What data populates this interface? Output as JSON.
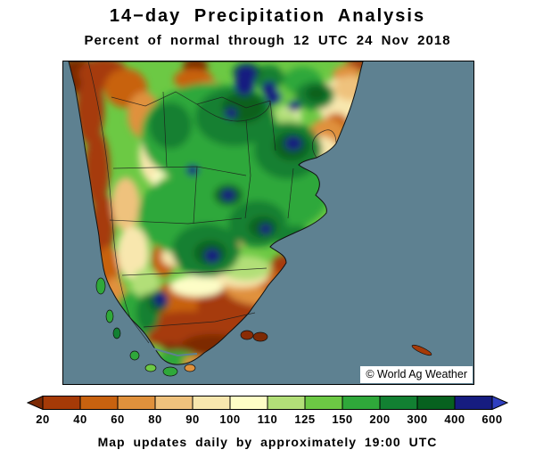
{
  "header": {
    "title": "14−day Precipitation Analysis",
    "subtitle": "Percent of normal through 12 UTC 24 Nov 2018"
  },
  "map": {
    "copyright": "© World Ag Weather",
    "ocean_color": "#5e8191"
  },
  "colorbar": {
    "labels": [
      "20",
      "40",
      "60",
      "80",
      "90",
      "100",
      "110",
      "125",
      "150",
      "200",
      "300",
      "400",
      "600"
    ],
    "colors": [
      "#7d2a05",
      "#a63a07",
      "#c8620f",
      "#e0913c",
      "#efc27d",
      "#f8e7ae",
      "#fdfdc6",
      "#b2df78",
      "#6cc944",
      "#2fa83a",
      "#128032",
      "#07611f",
      "#161c80",
      "#2f3fc0"
    ]
  },
  "footer": {
    "text": "Map updates daily by approximately 19:00 UTC"
  }
}
